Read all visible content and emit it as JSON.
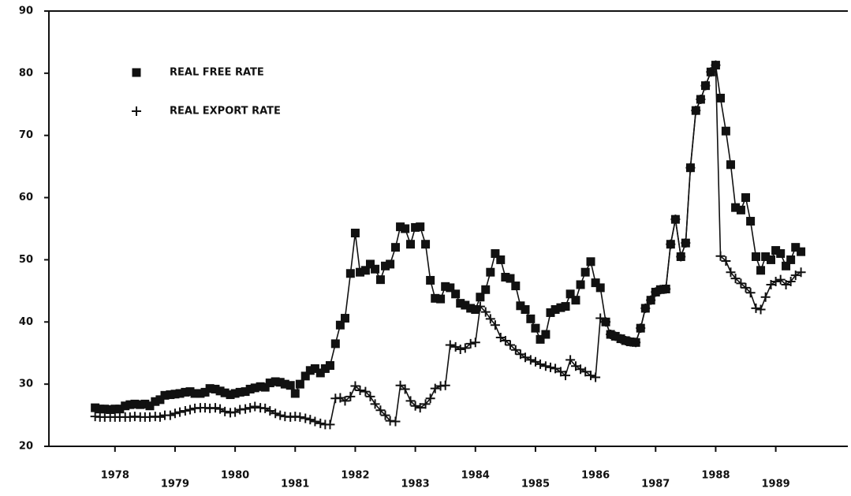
{
  "chart_data": {
    "type": "line",
    "x": [
      1977.67,
      1977.75,
      1977.83,
      1977.92,
      1978.0,
      1978.08,
      1978.17,
      1978.25,
      1978.33,
      1978.42,
      1978.5,
      1978.58,
      1978.67,
      1978.75,
      1978.83,
      1978.92,
      1979.0,
      1979.08,
      1979.17,
      1979.25,
      1979.33,
      1979.42,
      1979.5,
      1979.58,
      1979.67,
      1979.75,
      1979.83,
      1979.92,
      1980.0,
      1980.08,
      1980.17,
      1980.25,
      1980.33,
      1980.42,
      1980.5,
      1980.58,
      1980.67,
      1980.75,
      1980.83,
      1980.92,
      1981.0,
      1981.08,
      1981.17,
      1981.25,
      1981.33,
      1981.42,
      1981.5,
      1981.58,
      1981.67,
      1981.75,
      1981.83,
      1981.92,
      1982.0,
      1982.08,
      1982.17,
      1982.25,
      1982.33,
      1982.42,
      1982.5,
      1982.58,
      1982.67,
      1982.75,
      1982.83,
      1982.92,
      1983.0,
      1983.08,
      1983.17,
      1983.25,
      1983.33,
      1983.42,
      1983.5,
      1983.58,
      1983.67,
      1983.75,
      1983.83,
      1983.92,
      1984.0,
      1984.08,
      1984.17,
      1984.25,
      1984.33,
      1984.42,
      1984.5,
      1984.58,
      1984.67,
      1984.75,
      1984.83,
      1984.92,
      1985.0,
      1985.08,
      1985.17,
      1985.25,
      1985.33,
      1985.42,
      1985.5,
      1985.58,
      1985.67,
      1985.75,
      1985.83,
      1985.92,
      1986.0,
      1986.08,
      1986.17,
      1986.25,
      1986.33,
      1986.42,
      1986.5,
      1986.58,
      1986.67,
      1986.75,
      1986.83,
      1986.92,
      1987.0,
      1987.08,
      1987.17,
      1987.25,
      1987.33,
      1987.42,
      1987.5,
      1987.58,
      1987.67,
      1987.75,
      1987.83,
      1987.92,
      1988.0,
      1988.08,
      1988.17,
      1988.25,
      1988.33,
      1988.42,
      1988.5,
      1988.58,
      1988.67,
      1988.75,
      1988.83,
      1988.92,
      1989.0,
      1989.08,
      1989.17,
      1989.25,
      1989.33,
      1989.42
    ],
    "series": [
      {
        "name": "REAL FREE RATE",
        "color": "#111111",
        "marker": "square",
        "values": [
          26.2,
          26.0,
          26.0,
          25.9,
          26.0,
          26.0,
          26.5,
          26.7,
          26.8,
          26.7,
          26.8,
          26.5,
          27.2,
          27.5,
          28.2,
          28.3,
          28.4,
          28.5,
          28.7,
          28.8,
          28.5,
          28.5,
          28.7,
          29.3,
          29.2,
          28.9,
          28.6,
          28.3,
          28.5,
          28.7,
          28.8,
          29.2,
          29.4,
          29.6,
          29.5,
          30.2,
          30.4,
          30.3,
          30.0,
          29.8,
          28.5,
          30.0,
          31.3,
          32.2,
          32.5,
          31.8,
          32.5,
          33.0,
          36.5,
          39.5,
          40.6,
          47.8,
          54.3,
          48.0,
          48.3,
          49.3,
          48.5,
          46.8,
          49.0,
          49.3,
          52.0,
          55.3,
          55.0,
          52.5,
          55.2,
          55.3,
          52.5,
          46.7,
          43.8,
          43.7,
          45.7,
          45.5,
          44.5,
          43.0,
          42.7,
          42.2,
          42.0,
          44.0,
          45.2,
          48.0,
          51.0,
          50.0,
          47.2,
          47.0,
          45.8,
          42.6,
          42.0,
          40.5,
          39.0,
          37.2,
          38.0,
          41.5,
          42.0,
          42.3,
          42.5,
          44.5,
          43.5,
          46.0,
          48.0,
          49.7,
          46.3,
          45.5,
          40.0,
          38.0,
          37.7,
          37.3,
          37.0,
          36.8,
          36.7,
          39.0,
          42.2,
          43.5,
          44.8,
          45.2,
          45.3,
          52.5,
          56.5,
          50.5,
          52.7,
          64.8,
          74.0,
          75.8,
          78.0,
          80.2,
          81.3,
          76.0,
          70.7,
          65.3,
          58.4,
          58.0,
          60.0,
          56.2,
          50.5,
          48.3,
          50.5,
          50.0,
          51.5,
          51.0,
          49.0,
          50.0,
          52.0,
          51.3
        ]
      },
      {
        "name": "REAL EXPORT RATE",
        "color": "#111111",
        "marker": "plus",
        "values": [
          24.8,
          24.7,
          24.7,
          24.7,
          24.7,
          24.7,
          24.7,
          24.7,
          24.8,
          24.7,
          24.7,
          24.7,
          24.8,
          24.7,
          25.0,
          25.0,
          25.3,
          25.5,
          25.7,
          25.9,
          26.1,
          26.2,
          26.2,
          26.1,
          26.2,
          26.0,
          25.6,
          25.4,
          25.5,
          25.9,
          26.0,
          26.2,
          26.4,
          26.2,
          26.1,
          25.7,
          25.3,
          25.0,
          24.8,
          24.7,
          24.8,
          24.7,
          24.5,
          24.3,
          24.0,
          23.7,
          23.5,
          23.5,
          27.7,
          27.8,
          27.3,
          28.0,
          29.7,
          29.0,
          28.8,
          28.0,
          26.8,
          25.8,
          25.0,
          24.1,
          24.0,
          29.8,
          29.2,
          27.3,
          26.5,
          26.2,
          26.8,
          27.7,
          29.3,
          29.7,
          29.8,
          36.3,
          36.0,
          35.6,
          35.8,
          36.5,
          36.7,
          42.5,
          41.6,
          40.5,
          39.5,
          37.5,
          37.0,
          36.3,
          35.5,
          34.8,
          34.3,
          33.9,
          33.6,
          33.2,
          32.9,
          32.7,
          32.5,
          32.0,
          31.4,
          33.9,
          32.9,
          32.4,
          32.0,
          31.4,
          31.1,
          40.6,
          40.0,
          38.0,
          37.7,
          37.3,
          37.0,
          36.8,
          36.7,
          39.0,
          42.2,
          43.5,
          44.8,
          45.2,
          45.3,
          52.5,
          56.5,
          50.5,
          52.7,
          64.8,
          74.0,
          75.8,
          78.0,
          80.2,
          81.3,
          50.6,
          49.8,
          48.0,
          47.0,
          46.2,
          45.5,
          44.7,
          42.2,
          42.0,
          44.0,
          46.0,
          46.5,
          46.8,
          46.0,
          46.5,
          47.5,
          48.0
        ]
      }
    ],
    "xlim": [
      1976.9,
      1990.2
    ],
    "xticks": [
      1978,
      1979,
      1980,
      1981,
      1982,
      1983,
      1984,
      1985,
      1986,
      1987,
      1988,
      1989
    ],
    "ylim": [
      20,
      90
    ],
    "yticks": [
      20,
      30,
      40,
      50,
      60,
      70,
      80,
      90
    ],
    "legend": "upper left",
    "grid": false
  }
}
